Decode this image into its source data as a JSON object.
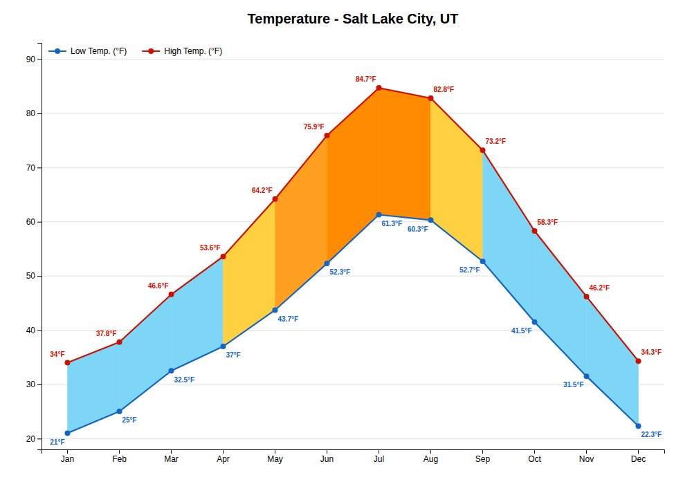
{
  "chart_data": {
    "type": "line",
    "title": "Temperature - Salt Lake City, UT",
    "categories": [
      "Jan",
      "Feb",
      "Mar",
      "Apr",
      "May",
      "Jun",
      "Jul",
      "Aug",
      "Sep",
      "Oct",
      "Nov",
      "Dec"
    ],
    "series": [
      {
        "name": "Low Temp. (°F)",
        "color": "#1565C0",
        "marker": "circle",
        "values": [
          21,
          25,
          32.5,
          37,
          43.7,
          52.3,
          61.3,
          60.3,
          52.7,
          41.5,
          31.5,
          22.3
        ],
        "value_labels": [
          "21°F",
          "25°F",
          "32.5°F",
          "37°F",
          "43.7°F",
          "52.3°F",
          "61.3°F",
          "60.3°F",
          "52.7°F",
          "41.5°F",
          "31.5°F",
          "22.3°F"
        ]
      },
      {
        "name": "High Temp. (°F)",
        "color": "#CC1100",
        "marker": "circle",
        "values": [
          34,
          37.8,
          46.6,
          53.6,
          64.2,
          75.9,
          84.7,
          82.8,
          73.2,
          58.3,
          46.2,
          34.3
        ],
        "value_labels": [
          "34°F",
          "37.8°F",
          "46.6°F",
          "53.6°F",
          "64.2°F",
          "75.9°F",
          "84.7°F",
          "82.8°F",
          "73.2°F",
          "58.3°F",
          "46.2°F",
          "34.3°F"
        ]
      }
    ],
    "colors": [
      "#7DD6F5",
      "#7DD6F5",
      "#7DD6F5",
      "#FFD040",
      "#FFA020",
      "#FF8C00",
      "#FF8C00",
      "#FFD040",
      "#7DD6F5",
      "#7DD6F5",
      "#7DD6F5"
    ],
    "ylim": [
      18,
      93
    ],
    "yticks": [
      20,
      30,
      40,
      50,
      60,
      70,
      80,
      90
    ],
    "grid": true,
    "legend": "upper left",
    "data_labels": true
  }
}
